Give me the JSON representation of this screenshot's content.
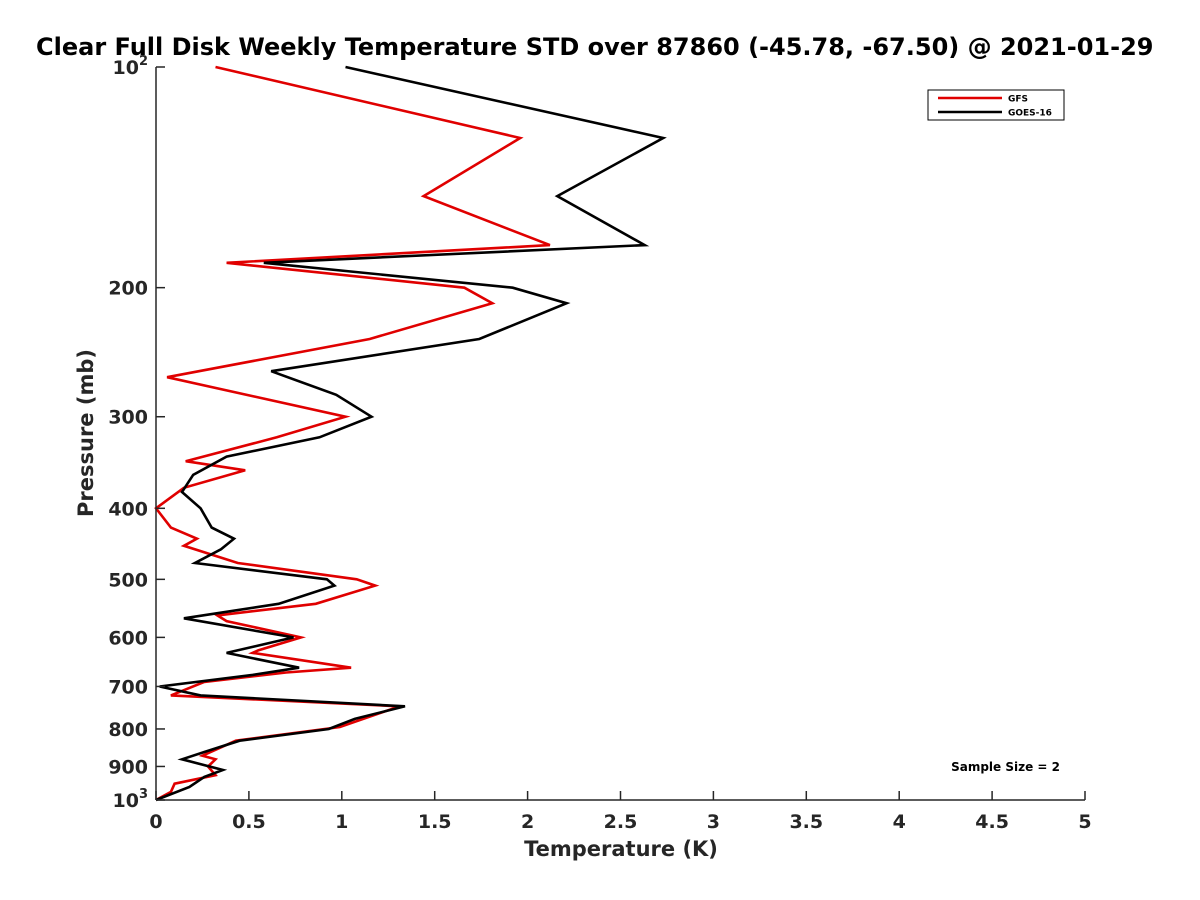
{
  "chart_data": {
    "type": "line",
    "title": "Clear Full Disk Weekly Temperature STD over 87860 (-45.78, -67.50) @ 2021-01-29",
    "xlabel": "Temperature (K)",
    "ylabel": "Pressure (mb)",
    "xlim": [
      0,
      5
    ],
    "ylim": [
      100,
      1000
    ],
    "y_scale": "log",
    "y_reversed": true,
    "grid": false,
    "legend_position": "top-right",
    "x_ticks": [
      "0",
      "0.5",
      "1",
      "1.5",
      "2",
      "2.5",
      "3",
      "3.5",
      "4",
      "4.5",
      "5"
    ],
    "y_ticks": [
      {
        "value": 100,
        "base": "10",
        "exp": "2"
      },
      {
        "value": 200,
        "label": "200"
      },
      {
        "value": 300,
        "label": "300"
      },
      {
        "value": 400,
        "label": "400"
      },
      {
        "value": 500,
        "label": "500"
      },
      {
        "value": 600,
        "label": "600"
      },
      {
        "value": 700,
        "label": "700"
      },
      {
        "value": 800,
        "label": "800"
      },
      {
        "value": 900,
        "label": "900"
      },
      {
        "value": 1000,
        "base": "10",
        "exp": "3"
      }
    ],
    "annotation": "Sample Size = 2",
    "series": [
      {
        "name": "GFS",
        "color": "#e00000",
        "points": [
          [
            0.32,
            100
          ],
          [
            1.96,
            125
          ],
          [
            1.44,
            150
          ],
          [
            2.12,
            175
          ],
          [
            0.38,
            185
          ],
          [
            1.66,
            200
          ],
          [
            1.81,
            210
          ],
          [
            1.15,
            235
          ],
          [
            0.06,
            265
          ],
          [
            1.02,
            300
          ],
          [
            0.65,
            320
          ],
          [
            0.16,
            345
          ],
          [
            0.48,
            355
          ],
          [
            0.15,
            375
          ],
          [
            0.0,
            400
          ],
          [
            0.08,
            425
          ],
          [
            0.22,
            440
          ],
          [
            0.15,
            450
          ],
          [
            0.44,
            475
          ],
          [
            1.08,
            500
          ],
          [
            1.18,
            510
          ],
          [
            0.86,
            540
          ],
          [
            0.33,
            560
          ],
          [
            0.38,
            570
          ],
          [
            0.78,
            600
          ],
          [
            0.55,
            625
          ],
          [
            0.52,
            630
          ],
          [
            1.05,
            660
          ],
          [
            0.7,
            670
          ],
          [
            0.26,
            690
          ],
          [
            0.08,
            720
          ],
          [
            1.31,
            745
          ],
          [
            0.99,
            795
          ],
          [
            0.43,
            830
          ],
          [
            0.25,
            870
          ],
          [
            0.32,
            880
          ],
          [
            0.28,
            900
          ],
          [
            0.32,
            925
          ],
          [
            0.1,
            950
          ],
          [
            0.08,
            975
          ],
          [
            0.0,
            1000
          ]
        ]
      },
      {
        "name": "GOES-16",
        "color": "#000000",
        "points": [
          [
            1.02,
            100
          ],
          [
            2.73,
            125
          ],
          [
            2.16,
            150
          ],
          [
            2.63,
            175
          ],
          [
            0.58,
            185
          ],
          [
            1.92,
            200
          ],
          [
            2.21,
            210
          ],
          [
            1.74,
            235
          ],
          [
            0.62,
            260
          ],
          [
            0.97,
            280
          ],
          [
            1.16,
            300
          ],
          [
            0.88,
            320
          ],
          [
            0.38,
            340
          ],
          [
            0.2,
            360
          ],
          [
            0.14,
            380
          ],
          [
            0.24,
            400
          ],
          [
            0.3,
            425
          ],
          [
            0.42,
            440
          ],
          [
            0.35,
            455
          ],
          [
            0.21,
            475
          ],
          [
            0.92,
            500
          ],
          [
            0.96,
            510
          ],
          [
            0.66,
            540
          ],
          [
            0.15,
            565
          ],
          [
            0.74,
            600
          ],
          [
            0.38,
            630
          ],
          [
            0.77,
            660
          ],
          [
            0.52,
            675
          ],
          [
            0.02,
            700
          ],
          [
            0.24,
            720
          ],
          [
            1.34,
            745
          ],
          [
            1.07,
            775
          ],
          [
            0.93,
            800
          ],
          [
            0.45,
            830
          ],
          [
            0.26,
            860
          ],
          [
            0.14,
            880
          ],
          [
            0.36,
            910
          ],
          [
            0.26,
            930
          ],
          [
            0.18,
            960
          ],
          [
            0.0,
            1000
          ]
        ]
      }
    ]
  }
}
